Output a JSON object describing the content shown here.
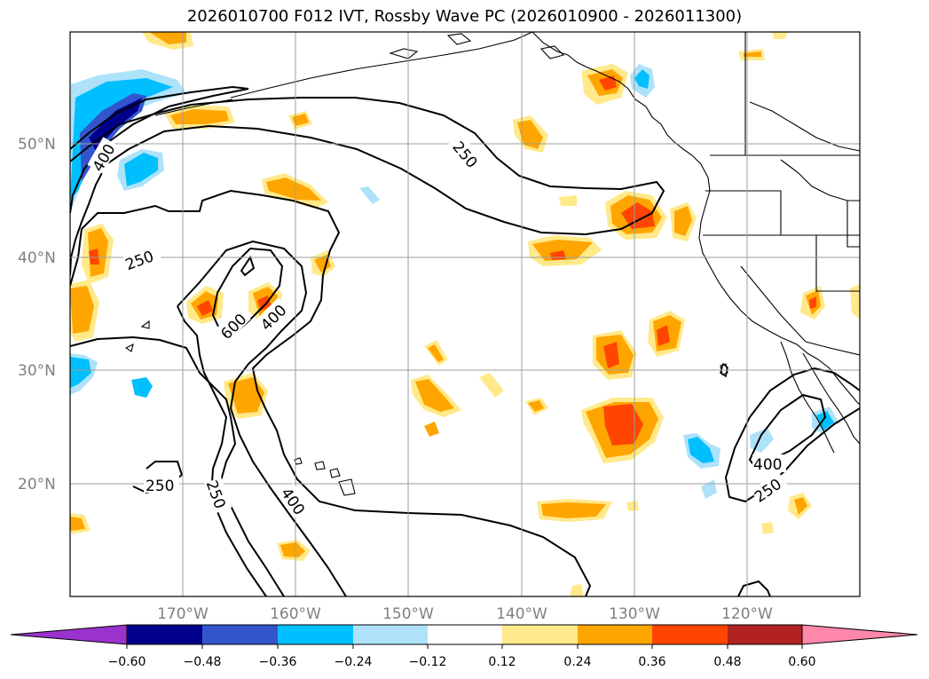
{
  "title": "2026010700 F012 IVT, Rossby Wave PC (2026010900 - 2026011300)",
  "lat_labels": [
    "50°N",
    "40°N",
    "30°N",
    "20°N"
  ],
  "lon_labels": [
    "170°W",
    "160°W",
    "150°W",
    "140°W",
    "130°W",
    "120°W"
  ],
  "colorbar": {
    "tick_labels": [
      "−0.60",
      "−0.48",
      "−0.36",
      "−0.24",
      "−0.12",
      "0.12",
      "0.24",
      "0.36",
      "0.48",
      "0.60"
    ],
    "colors": [
      "#9933cc",
      "#00008b",
      "#3355cc",
      "#00bfff",
      "#aee2fa",
      "#ffffff",
      "#ffe98a",
      "#ffa500",
      "#ff4500",
      "#b22222",
      "#ff88aa"
    ]
  },
  "contour_labels": {
    "c250_a": "250",
    "c250_b": "250",
    "c250_c": "250",
    "c250_d": "250",
    "c250_e": "250",
    "c400_a": "400",
    "c400_b": "400",
    "c400_c": "400",
    "c400_d": "400",
    "c600": "600"
  },
  "shading_colors": {
    "pos_light": "#ffe98a",
    "pos_mid": "#ffa500",
    "pos_strong": "#ff4500",
    "neg_light": "#aee2fa",
    "neg_mid": "#00bfff",
    "neg_strong": "#3355cc",
    "neg_strongest": "#00008b"
  }
}
